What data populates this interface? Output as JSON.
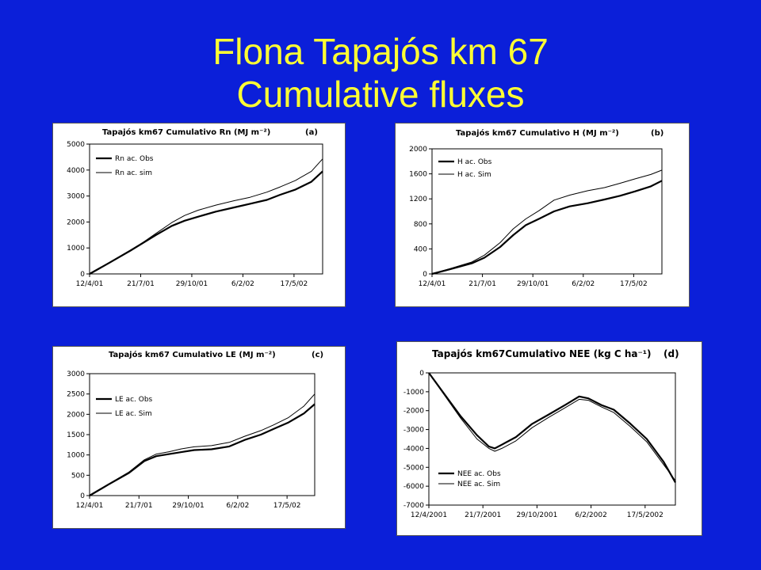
{
  "slide": {
    "title_line1": "Flona Tapajós km 67",
    "title_line2": "Cumulative fluxes",
    "background": "#0b1fd9",
    "title_color": "#ffff33"
  },
  "chart_data": [
    {
      "id": "a",
      "type": "line",
      "title": "Tapajós km67 Cumulativo Rn (MJ m⁻²)",
      "panel_label": "(a)",
      "x_type": "date",
      "x_ticks": [
        "12/4/01",
        "21/7/01",
        "29/10/01",
        "6/2/02",
        "17/5/02"
      ],
      "xlim": [
        "2001-04-12",
        "2002-07-12"
      ],
      "ylim": [
        0,
        5000
      ],
      "y_ticks": [
        0,
        1000,
        2000,
        3000,
        4000,
        5000
      ],
      "grid": false,
      "legend_position": "top-left",
      "series": [
        {
          "name": "Rn ac. Obs",
          "style": "thick",
          "points": [
            [
              "2001-04-12",
              0
            ],
            [
              "2001-05-20",
              420
            ],
            [
              "2001-07-01",
              900
            ],
            [
              "2001-08-20",
              1500
            ],
            [
              "2001-09-20",
              1850
            ],
            [
              "2001-10-15",
              2050
            ],
            [
              "2001-11-10",
              2200
            ],
            [
              "2001-12-15",
              2400
            ],
            [
              "2002-01-20",
              2560
            ],
            [
              "2002-02-20",
              2700
            ],
            [
              "2002-03-25",
              2850
            ],
            [
              "2002-04-20",
              3050
            ],
            [
              "2002-05-20",
              3250
            ],
            [
              "2002-06-20",
              3550
            ],
            [
              "2002-07-12",
              3950
            ]
          ]
        },
        {
          "name": "Rn ac. sim",
          "style": "thin",
          "points": [
            [
              "2001-04-12",
              0
            ],
            [
              "2001-05-20",
              430
            ],
            [
              "2001-07-01",
              880
            ],
            [
              "2001-08-20",
              1560
            ],
            [
              "2001-09-20",
              1980
            ],
            [
              "2001-10-15",
              2250
            ],
            [
              "2001-11-10",
              2450
            ],
            [
              "2001-12-15",
              2650
            ],
            [
              "2002-01-20",
              2820
            ],
            [
              "2002-02-20",
              2950
            ],
            [
              "2002-03-25",
              3150
            ],
            [
              "2002-04-20",
              3350
            ],
            [
              "2002-05-20",
              3600
            ],
            [
              "2002-06-20",
              3950
            ],
            [
              "2002-07-12",
              4430
            ]
          ]
        }
      ]
    },
    {
      "id": "b",
      "type": "line",
      "title": "Tapajós km67 Cumulativo H (MJ m⁻²)",
      "panel_label": "(b)",
      "x_type": "date",
      "x_ticks": [
        "12/4/01",
        "21/7/01",
        "29/10/01",
        "6/2/02",
        "17/5/02"
      ],
      "xlim": [
        "2001-04-12",
        "2002-07-12"
      ],
      "ylim": [
        0,
        2000
      ],
      "y_ticks": [
        0,
        400,
        800,
        1200,
        1600,
        2000
      ],
      "grid": false,
      "legend_position": "top-left",
      "series": [
        {
          "name": "H ac. Obs",
          "style": "thick",
          "points": [
            [
              "2001-04-12",
              0
            ],
            [
              "2001-05-20",
              80
            ],
            [
              "2001-06-30",
              170
            ],
            [
              "2001-07-25",
              260
            ],
            [
              "2001-08-25",
              430
            ],
            [
              "2001-09-20",
              620
            ],
            [
              "2001-10-15",
              780
            ],
            [
              "2001-11-10",
              880
            ],
            [
              "2001-12-10",
              1000
            ],
            [
              "2002-01-10",
              1080
            ],
            [
              "2002-02-15",
              1130
            ],
            [
              "2002-03-20",
              1190
            ],
            [
              "2002-04-20",
              1250
            ],
            [
              "2002-05-20",
              1320
            ],
            [
              "2002-06-20",
              1400
            ],
            [
              "2002-07-12",
              1490
            ]
          ]
        },
        {
          "name": "H ac. Sim",
          "style": "thin",
          "points": [
            [
              "2001-04-12",
              0
            ],
            [
              "2001-05-20",
              90
            ],
            [
              "2001-06-30",
              190
            ],
            [
              "2001-07-25",
              300
            ],
            [
              "2001-08-25",
              500
            ],
            [
              "2001-09-20",
              720
            ],
            [
              "2001-10-15",
              880
            ],
            [
              "2001-11-10",
              1010
            ],
            [
              "2001-12-10",
              1180
            ],
            [
              "2002-01-10",
              1260
            ],
            [
              "2002-02-15",
              1330
            ],
            [
              "2002-03-20",
              1380
            ],
            [
              "2002-04-20",
              1450
            ],
            [
              "2002-05-20",
              1520
            ],
            [
              "2002-06-20",
              1590
            ],
            [
              "2002-07-12",
              1660
            ]
          ]
        }
      ]
    },
    {
      "id": "c",
      "type": "line",
      "title": "Tapajós km67 Cumulativo LE (MJ m⁻²)",
      "panel_label": "(c)",
      "x_type": "date",
      "x_ticks": [
        "12/4/01",
        "21/7/01",
        "29/10/01",
        "6/2/02",
        "17/5/02"
      ],
      "xlim": [
        "2001-04-12",
        "2002-07-12"
      ],
      "ylim": [
        0,
        3000
      ],
      "y_ticks": [
        0,
        500,
        1000,
        1500,
        2000,
        2500,
        3000
      ],
      "grid": false,
      "legend_position": "top-left",
      "series": [
        {
          "name": "LE ac. Obs",
          "style": "thick",
          "points": [
            [
              "2001-04-12",
              0
            ],
            [
              "2001-05-20",
              270
            ],
            [
              "2001-07-01",
              560
            ],
            [
              "2001-08-01",
              850
            ],
            [
              "2001-08-25",
              970
            ],
            [
              "2001-09-20",
              1020
            ],
            [
              "2001-10-15",
              1070
            ],
            [
              "2001-11-10",
              1120
            ],
            [
              "2001-12-15",
              1140
            ],
            [
              "2002-01-20",
              1210
            ],
            [
              "2002-02-20",
              1370
            ],
            [
              "2002-03-25",
              1500
            ],
            [
              "2002-04-20",
              1640
            ],
            [
              "2002-05-20",
              1800
            ],
            [
              "2002-06-20",
              2020
            ],
            [
              "2002-07-12",
              2250
            ]
          ]
        },
        {
          "name": "LE ac. Sim",
          "style": "thin",
          "points": [
            [
              "2001-04-12",
              0
            ],
            [
              "2001-05-20",
              280
            ],
            [
              "2001-07-01",
              580
            ],
            [
              "2001-08-01",
              880
            ],
            [
              "2001-08-25",
              1020
            ],
            [
              "2001-09-20",
              1080
            ],
            [
              "2001-10-15",
              1150
            ],
            [
              "2001-11-10",
              1200
            ],
            [
              "2001-12-15",
              1230
            ],
            [
              "2002-01-20",
              1310
            ],
            [
              "2002-02-20",
              1460
            ],
            [
              "2002-03-25",
              1600
            ],
            [
              "2002-04-20",
              1740
            ],
            [
              "2002-05-20",
              1920
            ],
            [
              "2002-06-20",
              2200
            ],
            [
              "2002-07-12",
              2500
            ]
          ]
        }
      ]
    },
    {
      "id": "d",
      "type": "line",
      "title": "Tapajós km67Cumulativo NEE (kg C ha⁻¹)",
      "panel_label": "(d)",
      "x_type": "date",
      "x_ticks": [
        "12/4/2001",
        "21/7/2001",
        "29/10/2001",
        "6/2/2002",
        "17/5/2002"
      ],
      "xlim": [
        "2001-04-12",
        "2002-07-12"
      ],
      "ylim": [
        -7000,
        0
      ],
      "y_ticks": [
        -7000,
        -6000,
        -5000,
        -4000,
        -3000,
        -2000,
        -1000,
        0
      ],
      "grid": false,
      "legend_position": "bottom-left",
      "series": [
        {
          "name": "NEE ac. Obs",
          "style": "thick",
          "points": [
            [
              "2001-04-12",
              0
            ],
            [
              "2001-05-10",
              -1100
            ],
            [
              "2001-06-10",
              -2300
            ],
            [
              "2001-07-10",
              -3300
            ],
            [
              "2001-08-01",
              -3900
            ],
            [
              "2001-08-12",
              -4000
            ],
            [
              "2001-08-25",
              -3800
            ],
            [
              "2001-09-20",
              -3400
            ],
            [
              "2001-10-20",
              -2700
            ],
            [
              "2001-11-20",
              -2200
            ],
            [
              "2001-12-20",
              -1700
            ],
            [
              "2002-01-15",
              -1250
            ],
            [
              "2002-02-01",
              -1350
            ],
            [
              "2002-02-25",
              -1700
            ],
            [
              "2002-03-20",
              -1950
            ],
            [
              "2002-04-20",
              -2700
            ],
            [
              "2002-05-20",
              -3500
            ],
            [
              "2002-06-20",
              -4700
            ],
            [
              "2002-07-12",
              -5800
            ]
          ]
        },
        {
          "name": "NEE ac. Sim",
          "style": "thin",
          "points": [
            [
              "2001-04-12",
              0
            ],
            [
              "2001-05-10",
              -1150
            ],
            [
              "2001-06-10",
              -2400
            ],
            [
              "2001-07-10",
              -3500
            ],
            [
              "2001-08-01",
              -4000
            ],
            [
              "2001-08-12",
              -4150
            ],
            [
              "2001-08-25",
              -4000
            ],
            [
              "2001-09-20",
              -3600
            ],
            [
              "2001-10-20",
              -2900
            ],
            [
              "2001-11-20",
              -2350
            ],
            [
              "2001-12-20",
              -1850
            ],
            [
              "2002-01-15",
              -1400
            ],
            [
              "2002-02-01",
              -1450
            ],
            [
              "2002-02-25",
              -1800
            ],
            [
              "2002-03-20",
              -2100
            ],
            [
              "2002-04-20",
              -2850
            ],
            [
              "2002-05-20",
              -3650
            ],
            [
              "2002-06-20",
              -4850
            ],
            [
              "2002-07-12",
              -5700
            ]
          ]
        }
      ]
    }
  ]
}
